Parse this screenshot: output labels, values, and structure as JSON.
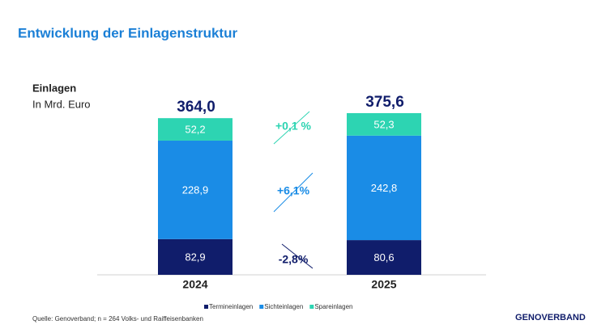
{
  "chart_data": {
    "type": "stacked_bar",
    "title": "Entwicklung der Einlagenstruktur",
    "subtitle": "Einlagen",
    "unit_label": "In Mrd. Euro",
    "categories": [
      "2024",
      "2025"
    ],
    "series": [
      {
        "name": "Termineinlagen",
        "color": "#101d6b",
        "values": [
          82.9,
          80.6
        ],
        "value_labels": [
          "82,9",
          "80,6"
        ]
      },
      {
        "name": "Sichteinlagen",
        "color": "#1a8ce6",
        "values": [
          228.9,
          242.8
        ],
        "value_labels": [
          "228,9",
          "242,8"
        ]
      },
      {
        "name": "Spareinlagen",
        "color": "#2dd4b2",
        "values": [
          52.2,
          52.3
        ],
        "value_labels": [
          "52,2",
          "52,3"
        ]
      }
    ],
    "totals": [
      364.0,
      375.6
    ],
    "total_labels": [
      "364,0",
      "375,6"
    ],
    "annotations": [
      "-2,8%",
      "+6,1%",
      "+0,1 %"
    ],
    "source": "Quelle: Genoverband; n = 264 Volks- und Raiffeisenbanken",
    "logo": "GENOVERBAND"
  }
}
